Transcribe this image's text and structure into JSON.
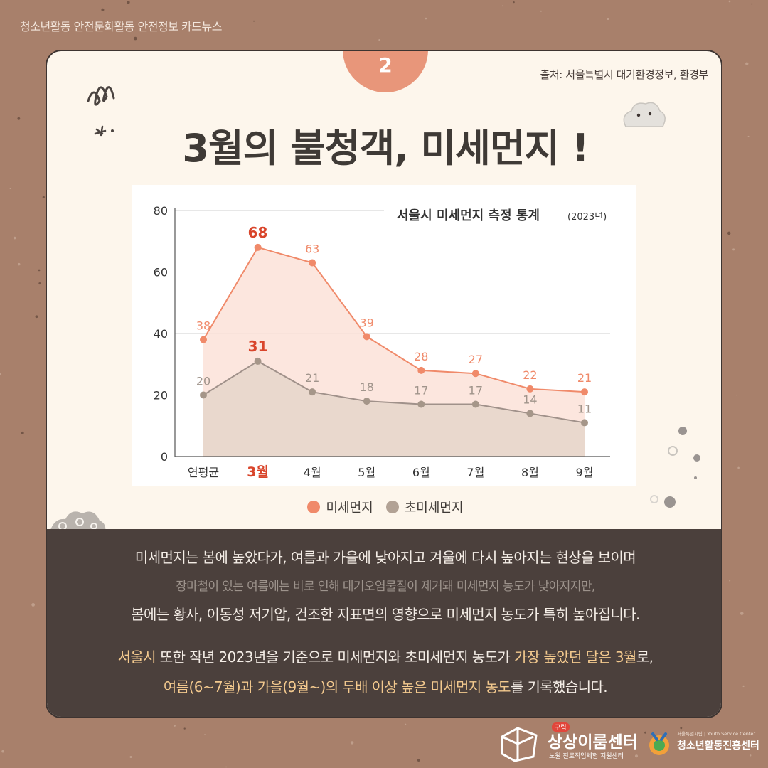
{
  "top_caption": "청소년활동 안전문화활동 안전정보 카드뉴스",
  "badge_number": "2",
  "source": "출처: 서울특별시 대기환경정보, 환경부",
  "title": "3월의 불청객, 미세먼지 !",
  "colors": {
    "pm10": "#f08a6a",
    "pm10_fill": "#fbe0d6",
    "pm25": "#b2a295",
    "pm25_fill": "#e9d8cd",
    "highlight": "#d9452b"
  },
  "chart_data": {
    "type": "area",
    "title": "서울시 미세먼지 측정 통계",
    "subtitle": "(2023년)",
    "categories": [
      "연평균",
      "3월",
      "4월",
      "5월",
      "6월",
      "7월",
      "8월",
      "9월"
    ],
    "highlight_category": "3월",
    "ylim": [
      0,
      80
    ],
    "yticks": [
      0,
      20,
      40,
      60,
      80
    ],
    "grid": true,
    "series": [
      {
        "name": "미세먼지",
        "values": [
          38,
          68,
          63,
          39,
          28,
          27,
          22,
          21
        ]
      },
      {
        "name": "초미세먼지",
        "values": [
          20,
          31,
          21,
          18,
          17,
          17,
          14,
          11
        ]
      }
    ]
  },
  "legend": [
    "미세먼지",
    "초미세먼지"
  ],
  "paragraph1": {
    "line1": "미세먼지는 봄에 높았다가, 여름과 가을에 낮아지고 겨울에 다시 높아지는 현상을 보이며",
    "line2": "장마철이 있는 여름에는 비로 인해 대기오염물질이 제거돼 미세먼지 농도가 낮아지지만,",
    "line3": "봄에는 황사, 이동성 저기압, 건조한 지표면의 영향으로 미세먼지 농도가 특히 높아집니다."
  },
  "paragraph2": {
    "line1_a": "서울시",
    "line1_b": " 또한 작년 2023년을 기준으로 미세먼지와 초미세먼지 농도가 ",
    "line1_c": "가장 높았던 달은 3월",
    "line1_d": "로,",
    "line2_a": "여름(6~7월)과 가을(9월~)의 두배 이상 높은 미세먼지 농도",
    "line2_b": "를 기록했습니다."
  },
  "footer": {
    "left_badge": "구립",
    "left_name": "상상이룸센터",
    "left_sub": "노원 진로직업체험 지원센터",
    "right_top": "서울특별시립 | Youth Service Center",
    "right_name": "청소년활동진흥센터"
  }
}
